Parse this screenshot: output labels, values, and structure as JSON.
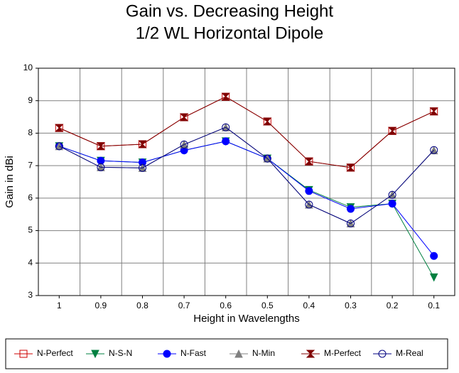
{
  "chart_data": {
    "type": "line",
    "title": "Gain vs. Decreasing Height",
    "subtitle": "1/2 WL Horizontal Dipole",
    "x_label": "Height in Wavelengths",
    "y_label": "Gain in dBi",
    "categories": [
      "1",
      "0.9",
      "0.8",
      "0.7",
      "0.6",
      "0.5",
      "0.4",
      "0.3",
      "0.2",
      "0.1"
    ],
    "ylim": [
      3,
      10
    ],
    "yticks": [
      3,
      4,
      5,
      6,
      7,
      8,
      9,
      10
    ],
    "grid": true,
    "legend": "bottom",
    "series": [
      {
        "name": "N-Perfect",
        "color": "#cc0000",
        "marker": "square-open",
        "values": [
          8.16,
          7.6,
          7.66,
          8.49,
          9.12,
          8.36,
          7.13,
          6.94,
          8.07,
          8.67
        ]
      },
      {
        "name": "N-S-N",
        "color": "#008040",
        "marker": "triangle-down",
        "values": [
          7.6,
          7.15,
          7.1,
          7.47,
          7.75,
          7.22,
          6.25,
          5.72,
          5.83,
          3.56
        ]
      },
      {
        "name": "N-Fast",
        "color": "#0000ff",
        "marker": "circle",
        "values": [
          7.6,
          7.15,
          7.1,
          7.47,
          7.75,
          7.22,
          6.22,
          5.67,
          5.83,
          4.22
        ]
      },
      {
        "name": "N-Min",
        "color": "#808080",
        "marker": "triangle-up",
        "values": [
          7.6,
          6.95,
          6.93,
          7.65,
          8.18,
          7.22,
          5.8,
          5.22,
          6.1,
          7.47
        ]
      },
      {
        "name": "M-Perfect",
        "color": "#800000",
        "marker": "hourglass",
        "values": [
          8.16,
          7.6,
          7.66,
          8.49,
          9.12,
          8.36,
          7.13,
          6.94,
          8.07,
          8.67
        ]
      },
      {
        "name": "M-Real",
        "color": "#000080",
        "marker": "circle-open",
        "values": [
          7.6,
          6.95,
          6.93,
          7.65,
          8.18,
          7.22,
          5.8,
          5.22,
          6.1,
          7.48
        ]
      }
    ]
  }
}
